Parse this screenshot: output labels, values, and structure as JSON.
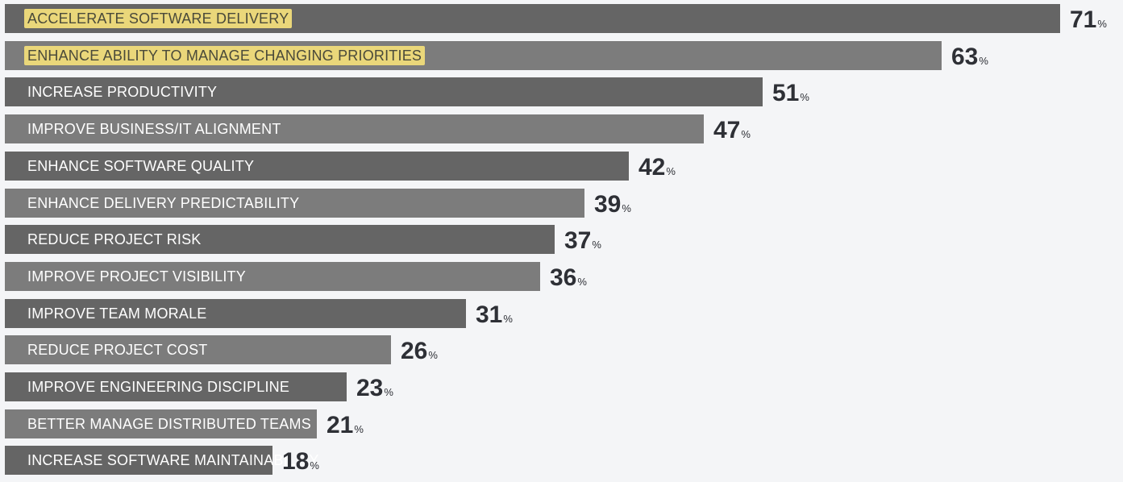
{
  "chart_data": {
    "type": "bar",
    "orientation": "horizontal",
    "unit": "%",
    "xlim": [
      0,
      100
    ],
    "grid": false,
    "colors": {
      "bar_dark": "#656565",
      "bar_light": "#7c7c7c",
      "highlight": "#ead77a",
      "value_text": "#2e3036",
      "background": "#f4f5f7"
    },
    "categories": [
      "ACCELERATE SOFTWARE DELIVERY",
      "ENHANCE ABILITY TO MANAGE CHANGING PRIORITIES",
      "INCREASE PRODUCTIVITY",
      "IMPROVE BUSINESS/IT ALIGNMENT",
      "ENHANCE SOFTWARE QUALITY",
      "ENHANCE DELIVERY PREDICTABILITY",
      "REDUCE PROJECT RISK",
      "IMPROVE PROJECT VISIBILITY",
      "IMPROVE TEAM MORALE",
      "REDUCE PROJECT COST",
      "IMPROVE ENGINEERING DISCIPLINE",
      "BETTER MANAGE DISTRIBUTED TEAMS",
      "INCREASE SOFTWARE MAINTAINABILITY"
    ],
    "values": [
      71,
      63,
      51,
      47,
      42,
      39,
      37,
      36,
      31,
      26,
      23,
      21,
      18
    ],
    "highlighted": [
      true,
      true,
      false,
      false,
      false,
      false,
      false,
      false,
      false,
      false,
      false,
      false,
      false
    ],
    "value_suffix": "%"
  }
}
